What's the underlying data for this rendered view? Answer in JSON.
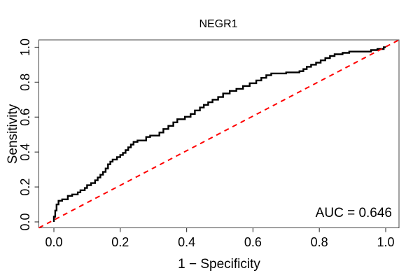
{
  "chart_data": {
    "type": "line",
    "title": "NEGR1",
    "xlabel": "1 − Specificity",
    "ylabel": "Sensitivity",
    "xlim": [
      0,
      1
    ],
    "ylim": [
      0,
      1
    ],
    "grid": false,
    "legend": "none",
    "x_ticks": {
      "values": [
        0,
        0.2,
        0.4,
        0.6,
        0.8,
        1.0
      ],
      "labels": [
        "0.0",
        "0.2",
        "0.4",
        "0.6",
        "0.8",
        "1.0"
      ]
    },
    "y_ticks": {
      "values": [
        0,
        0.2,
        0.4,
        0.6,
        0.8,
        1.0
      ],
      "labels": [
        "0.0",
        "0.2",
        "0.4",
        "0.6",
        "0.8",
        "1.0"
      ]
    },
    "annotation": {
      "text": "AUC = 0.646",
      "position": "bottom-right"
    },
    "auc": 0.646,
    "colors": {
      "roc_curve": "#000000",
      "reference_line": "#ff0000",
      "axis": "#444444",
      "text": "#000000",
      "background": "#ffffff"
    },
    "series": [
      {
        "name": "ROC curve",
        "type": "step",
        "color": "#000000",
        "points": [
          [
            0,
            0
          ],
          [
            0,
            0.03
          ],
          [
            0.004,
            0.03
          ],
          [
            0.004,
            0.065
          ],
          [
            0.008,
            0.065
          ],
          [
            0.008,
            0.1
          ],
          [
            0.014,
            0.1
          ],
          [
            0.014,
            0.121
          ],
          [
            0.025,
            0.121
          ],
          [
            0.025,
            0.129
          ],
          [
            0.042,
            0.129
          ],
          [
            0.042,
            0.149
          ],
          [
            0.055,
            0.149
          ],
          [
            0.055,
            0.157
          ],
          [
            0.072,
            0.157
          ],
          [
            0.072,
            0.169
          ],
          [
            0.08,
            0.169
          ],
          [
            0.08,
            0.181
          ],
          [
            0.093,
            0.181
          ],
          [
            0.093,
            0.194
          ],
          [
            0.1,
            0.194
          ],
          [
            0.1,
            0.21
          ],
          [
            0.112,
            0.21
          ],
          [
            0.112,
            0.222
          ],
          [
            0.124,
            0.222
          ],
          [
            0.124,
            0.238
          ],
          [
            0.132,
            0.238
          ],
          [
            0.132,
            0.254
          ],
          [
            0.14,
            0.254
          ],
          [
            0.14,
            0.27
          ],
          [
            0.148,
            0.27
          ],
          [
            0.148,
            0.286
          ],
          [
            0.156,
            0.286
          ],
          [
            0.156,
            0.306
          ],
          [
            0.163,
            0.306
          ],
          [
            0.163,
            0.33
          ],
          [
            0.17,
            0.33
          ],
          [
            0.17,
            0.345
          ],
          [
            0.177,
            0.345
          ],
          [
            0.177,
            0.357
          ],
          [
            0.19,
            0.357
          ],
          [
            0.19,
            0.371
          ],
          [
            0.2,
            0.371
          ],
          [
            0.2,
            0.383
          ],
          [
            0.208,
            0.383
          ],
          [
            0.208,
            0.395
          ],
          [
            0.216,
            0.395
          ],
          [
            0.216,
            0.411
          ],
          [
            0.224,
            0.411
          ],
          [
            0.224,
            0.427
          ],
          [
            0.232,
            0.427
          ],
          [
            0.232,
            0.443
          ],
          [
            0.24,
            0.443
          ],
          [
            0.24,
            0.458
          ],
          [
            0.252,
            0.458
          ],
          [
            0.252,
            0.466
          ],
          [
            0.278,
            0.466
          ],
          [
            0.278,
            0.486
          ],
          [
            0.29,
            0.486
          ],
          [
            0.29,
            0.494
          ],
          [
            0.318,
            0.494
          ],
          [
            0.318,
            0.512
          ],
          [
            0.33,
            0.512
          ],
          [
            0.33,
            0.532
          ],
          [
            0.345,
            0.532
          ],
          [
            0.345,
            0.55
          ],
          [
            0.36,
            0.55
          ],
          [
            0.36,
            0.57
          ],
          [
            0.372,
            0.57
          ],
          [
            0.372,
            0.588
          ],
          [
            0.395,
            0.588
          ],
          [
            0.395,
            0.602
          ],
          [
            0.412,
            0.602
          ],
          [
            0.412,
            0.618
          ],
          [
            0.425,
            0.618
          ],
          [
            0.425,
            0.638
          ],
          [
            0.44,
            0.638
          ],
          [
            0.44,
            0.655
          ],
          [
            0.452,
            0.655
          ],
          [
            0.452,
            0.67
          ],
          [
            0.465,
            0.67
          ],
          [
            0.465,
            0.685
          ],
          [
            0.478,
            0.685
          ],
          [
            0.478,
            0.7
          ],
          [
            0.495,
            0.7
          ],
          [
            0.495,
            0.715
          ],
          [
            0.51,
            0.715
          ],
          [
            0.51,
            0.735
          ],
          [
            0.53,
            0.735
          ],
          [
            0.53,
            0.75
          ],
          [
            0.55,
            0.75
          ],
          [
            0.55,
            0.762
          ],
          [
            0.57,
            0.762
          ],
          [
            0.57,
            0.778
          ],
          [
            0.59,
            0.778
          ],
          [
            0.59,
            0.794
          ],
          [
            0.61,
            0.794
          ],
          [
            0.61,
            0.81
          ],
          [
            0.625,
            0.81
          ],
          [
            0.625,
            0.825
          ],
          [
            0.64,
            0.825
          ],
          [
            0.64,
            0.84
          ],
          [
            0.655,
            0.84
          ],
          [
            0.655,
            0.85
          ],
          [
            0.7,
            0.85
          ],
          [
            0.7,
            0.856
          ],
          [
            0.74,
            0.856
          ],
          [
            0.74,
            0.863
          ],
          [
            0.752,
            0.863
          ],
          [
            0.752,
            0.875
          ],
          [
            0.762,
            0.875
          ],
          [
            0.762,
            0.888
          ],
          [
            0.775,
            0.888
          ],
          [
            0.775,
            0.9
          ],
          [
            0.79,
            0.9
          ],
          [
            0.79,
            0.912
          ],
          [
            0.804,
            0.912
          ],
          [
            0.804,
            0.925
          ],
          [
            0.818,
            0.925
          ],
          [
            0.818,
            0.938
          ],
          [
            0.832,
            0.938
          ],
          [
            0.832,
            0.95
          ],
          [
            0.846,
            0.95
          ],
          [
            0.846,
            0.96
          ],
          [
            0.87,
            0.96
          ],
          [
            0.87,
            0.968
          ],
          [
            0.89,
            0.968
          ],
          [
            0.89,
            0.975
          ],
          [
            0.956,
            0.975
          ],
          [
            0.956,
            0.984
          ],
          [
            0.975,
            0.984
          ],
          [
            0.975,
            0.99
          ],
          [
            0.994,
            0.99
          ],
          [
            0.994,
            1
          ],
          [
            1,
            1
          ]
        ]
      },
      {
        "name": "Chance reference line",
        "type": "dashed-diagonal",
        "color": "#ff0000",
        "points": [
          [
            0,
            0
          ],
          [
            1,
            1
          ]
        ]
      }
    ]
  }
}
